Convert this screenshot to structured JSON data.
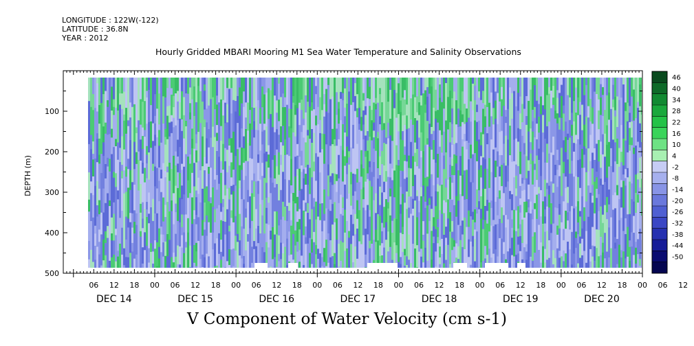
{
  "header": {
    "longitude": "LONGITUDE : 122W(-122)",
    "latitude": "LATITUDE : 36.8N",
    "year": "YEAR : 2012"
  },
  "chart_data": {
    "type": "heatmap",
    "title": "Hourly Gridded MBARI Mooring M1 Sea Water Temperature and Salinity Observations",
    "colorbar_label": "V Component of Water Velocity (cm s-1)",
    "ylabel": "DEPTH (m)",
    "yticks": [
      100,
      200,
      300,
      400,
      500
    ],
    "ylim": [
      500,
      0
    ],
    "x_hour_ticks": [
      "06",
      "12",
      "18",
      "00",
      "06",
      "12",
      "18",
      "00",
      "06",
      "12",
      "18",
      "00",
      "06",
      "12",
      "18",
      "00",
      "06",
      "12",
      "18",
      "00",
      "06",
      "12",
      "18",
      "00",
      "06",
      "12",
      "18",
      "00",
      "06",
      "12",
      "18",
      "00"
    ],
    "x_day_labels": [
      "DEC 14",
      "DEC 15",
      "DEC 16",
      "DEC 17",
      "DEC 18",
      "DEC 19",
      "DEC 20"
    ],
    "colorbar_levels": [
      "46",
      "40",
      "34",
      "28",
      "22",
      "16",
      "10",
      "4",
      "-2",
      "-8",
      "-14",
      "-20",
      "-26",
      "-32",
      "-38",
      "-44",
      "-50"
    ],
    "colorbar_colors": [
      "#0a4a1e",
      "#0e6a28",
      "#128a32",
      "#1aa83c",
      "#24c247",
      "#3ad45a",
      "#6ee284",
      "#a8f0b2",
      "#c6ccf4",
      "#a6b0ee",
      "#8894e6",
      "#6a78dc",
      "#4f5fd2",
      "#3a46c4",
      "#2530b0",
      "#161c98",
      "#0a0c70",
      "#050650"
    ],
    "data_depth_range": [
      20,
      490
    ],
    "data_time_range_hours": [
      6,
      174
    ],
    "dominant_sign_by_period": [
      {
        "start": "DEC 14 06",
        "end": "DEC 17 00",
        "sign": "negative"
      },
      {
        "start": "DEC 17 18",
        "end": "DEC 18 06",
        "sign": "positive"
      },
      {
        "start": "DEC 19 06",
        "end": "DEC 20 00",
        "sign": "negative"
      }
    ]
  }
}
